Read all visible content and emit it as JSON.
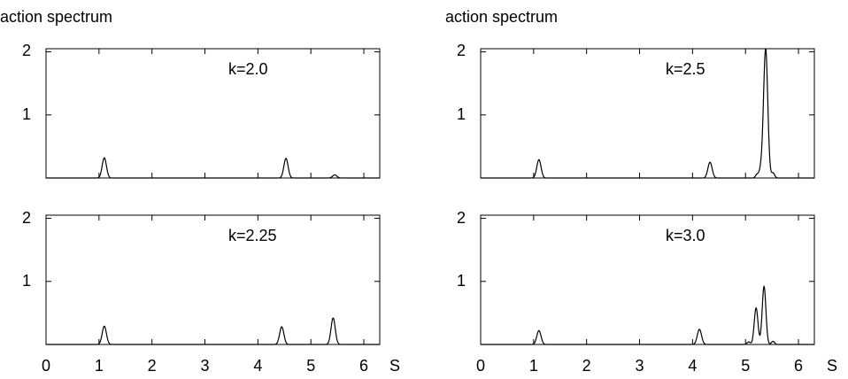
{
  "figure": {
    "column_titles": [
      "action spectrum",
      "action spectrum"
    ],
    "x_axis_symbol": "S"
  },
  "chart_data": [
    {
      "type": "line",
      "annotation": "k=2.0",
      "xlim": [
        0,
        6.3
      ],
      "ylim": [
        0,
        2.05
      ],
      "x_ticks": [
        0,
        1,
        2,
        3,
        4,
        5,
        6
      ],
      "y_tick_labels": [
        1,
        2
      ],
      "grid": false,
      "peaks": [
        {
          "x": 1.1,
          "y": 0.32,
          "w": 0.04
        },
        {
          "x": 4.53,
          "y": 0.31,
          "w": 0.04
        },
        {
          "x": 5.45,
          "y": 0.05,
          "w": 0.04
        }
      ]
    },
    {
      "type": "line",
      "annotation": "k=2.5",
      "xlim": [
        0,
        6.3
      ],
      "ylim": [
        0,
        2.05
      ],
      "x_ticks": [
        0,
        1,
        2,
        3,
        4,
        5,
        6
      ],
      "y_tick_labels": [
        1,
        2
      ],
      "grid": false,
      "peaks": [
        {
          "x": 1.1,
          "y": 0.29,
          "w": 0.04
        },
        {
          "x": 4.33,
          "y": 0.25,
          "w": 0.04
        },
        {
          "x": 5.22,
          "y": 0.06,
          "w": 0.03
        },
        {
          "x": 5.29,
          "y": 0.12,
          "w": 0.03
        },
        {
          "x": 5.38,
          "y": 2.05,
          "w": 0.04
        },
        {
          "x": 5.52,
          "y": 0.08,
          "w": 0.03
        }
      ]
    },
    {
      "type": "line",
      "annotation": "k=2.25",
      "xlim": [
        0,
        6.3
      ],
      "ylim": [
        0,
        2.05
      ],
      "x_ticks": [
        0,
        1,
        2,
        3,
        4,
        5,
        6
      ],
      "y_tick_labels": [
        1,
        2
      ],
      "grid": false,
      "peaks": [
        {
          "x": 1.1,
          "y": 0.29,
          "w": 0.04
        },
        {
          "x": 4.45,
          "y": 0.28,
          "w": 0.04
        },
        {
          "x": 5.42,
          "y": 0.42,
          "w": 0.04
        }
      ]
    },
    {
      "type": "line",
      "annotation": "k=3.0",
      "xlim": [
        0,
        6.3
      ],
      "ylim": [
        0,
        2.05
      ],
      "x_ticks": [
        0,
        1,
        2,
        3,
        4,
        5,
        6
      ],
      "y_tick_labels": [
        1,
        2
      ],
      "grid": false,
      "peaks": [
        {
          "x": 1.1,
          "y": 0.22,
          "w": 0.04
        },
        {
          "x": 4.13,
          "y": 0.24,
          "w": 0.04
        },
        {
          "x": 5.06,
          "y": 0.04,
          "w": 0.03
        },
        {
          "x": 5.2,
          "y": 0.58,
          "w": 0.035
        },
        {
          "x": 5.35,
          "y": 0.92,
          "w": 0.035
        },
        {
          "x": 5.52,
          "y": 0.05,
          "w": 0.03
        }
      ]
    }
  ]
}
